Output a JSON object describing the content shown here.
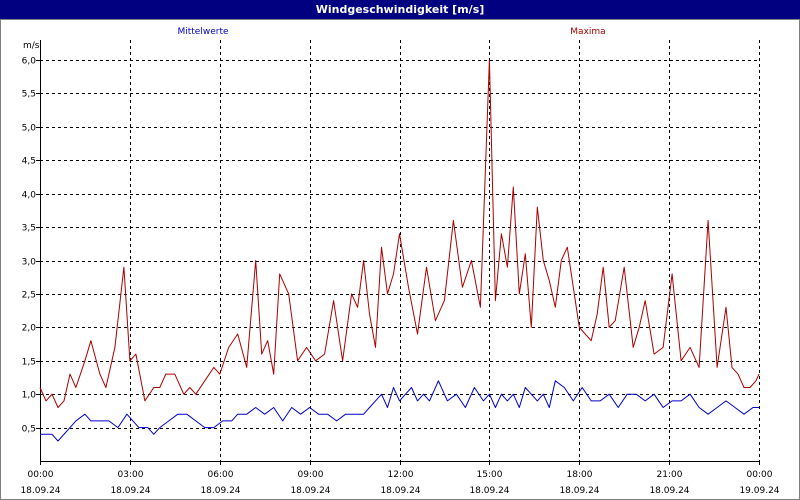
{
  "window": {
    "title": "Windgeschwindigkeit [m/s]"
  },
  "chart_data": {
    "type": "line",
    "title": "Windgeschwindigkeit [m/s]",
    "ylabel": "m/s",
    "ylim": [
      0,
      6.3
    ],
    "yticks": [
      "0,5",
      "1,0",
      "1,5",
      "2,0",
      "2,5",
      "3,0",
      "3,5",
      "4,0",
      "4,5",
      "5,0",
      "5,5",
      "6,0"
    ],
    "ytick_values": [
      0.5,
      1.0,
      1.5,
      2.0,
      2.5,
      3.0,
      3.5,
      4.0,
      4.5,
      5.0,
      5.5,
      6.0
    ],
    "xlim": [
      0,
      24
    ],
    "xticks": [
      {
        "time": "00:00",
        "date": "18.09.24"
      },
      {
        "time": "03:00",
        "date": "18.09.24"
      },
      {
        "time": "06:00",
        "date": "18.09.24"
      },
      {
        "time": "09:00",
        "date": "18.09.24"
      },
      {
        "time": "12:00",
        "date": "18.09.24"
      },
      {
        "time": "15:00",
        "date": "18.09.24"
      },
      {
        "time": "18:00",
        "date": "18.09.24"
      },
      {
        "time": "21:00",
        "date": "18.09.24"
      },
      {
        "time": "00:00",
        "date": "19.09.24"
      }
    ],
    "grid": true,
    "legend": {
      "left": "Mittelwerte",
      "right": "Maxima"
    },
    "colors": {
      "mean": "#0000cc",
      "max": "#aa0000",
      "title_bg": "#000080"
    },
    "series": [
      {
        "name": "Mittelwerte",
        "x": [
          0,
          0.4,
          0.6,
          1.0,
          1.2,
          1.5,
          1.7,
          2.0,
          2.3,
          2.6,
          2.9,
          3.1,
          3.3,
          3.6,
          3.8,
          4.0,
          4.3,
          4.6,
          4.9,
          5.2,
          5.5,
          5.8,
          6.1,
          6.4,
          6.6,
          6.9,
          7.2,
          7.5,
          7.8,
          8.1,
          8.4,
          8.7,
          9.0,
          9.3,
          9.6,
          9.9,
          10.2,
          10.5,
          10.8,
          11.0,
          11.2,
          11.4,
          11.6,
          11.8,
          12.0,
          12.2,
          12.4,
          12.6,
          12.8,
          13.0,
          13.3,
          13.6,
          13.9,
          14.2,
          14.5,
          14.8,
          15.0,
          15.2,
          15.4,
          15.6,
          15.8,
          16.0,
          16.2,
          16.4,
          16.6,
          16.8,
          17.0,
          17.2,
          17.5,
          17.8,
          18.1,
          18.4,
          18.7,
          19.0,
          19.3,
          19.6,
          19.9,
          20.2,
          20.5,
          20.8,
          21.1,
          21.4,
          21.7,
          22.0,
          22.3,
          22.6,
          22.9,
          23.2,
          23.5,
          23.8,
          24.0
        ],
        "y": [
          0.4,
          0.4,
          0.3,
          0.5,
          0.6,
          0.7,
          0.6,
          0.6,
          0.6,
          0.5,
          0.7,
          0.6,
          0.5,
          0.5,
          0.4,
          0.5,
          0.6,
          0.7,
          0.7,
          0.6,
          0.5,
          0.5,
          0.6,
          0.6,
          0.7,
          0.7,
          0.8,
          0.7,
          0.8,
          0.6,
          0.8,
          0.7,
          0.8,
          0.7,
          0.7,
          0.6,
          0.7,
          0.7,
          0.7,
          0.8,
          0.9,
          1.0,
          0.8,
          1.1,
          0.9,
          1.0,
          1.1,
          0.9,
          1.0,
          0.9,
          1.2,
          0.9,
          1.0,
          0.8,
          1.1,
          0.9,
          1.0,
          0.8,
          1.0,
          0.9,
          1.0,
          0.8,
          1.1,
          1.0,
          0.9,
          1.0,
          0.8,
          1.2,
          1.1,
          0.9,
          1.1,
          0.9,
          0.9,
          1.0,
          0.8,
          1.0,
          1.0,
          0.9,
          1.0,
          0.8,
          0.9,
          0.9,
          1.0,
          0.8,
          0.7,
          0.8,
          0.9,
          0.8,
          0.7,
          0.8,
          0.8
        ]
      },
      {
        "name": "Maxima",
        "x": [
          0,
          0.2,
          0.4,
          0.6,
          0.8,
          1.0,
          1.2,
          1.5,
          1.7,
          2.0,
          2.2,
          2.5,
          2.8,
          3.0,
          3.2,
          3.5,
          3.8,
          4.0,
          4.2,
          4.5,
          4.8,
          5.0,
          5.2,
          5.5,
          5.8,
          6.0,
          6.3,
          6.6,
          6.9,
          7.2,
          7.4,
          7.6,
          7.8,
          8.0,
          8.3,
          8.6,
          8.9,
          9.2,
          9.5,
          9.8,
          10.1,
          10.4,
          10.6,
          10.8,
          11.0,
          11.2,
          11.4,
          11.6,
          11.8,
          12.0,
          12.3,
          12.6,
          12.9,
          13.2,
          13.5,
          13.8,
          14.1,
          14.4,
          14.7,
          15.0,
          15.2,
          15.4,
          15.6,
          15.8,
          16.0,
          16.2,
          16.4,
          16.6,
          16.8,
          17.0,
          17.2,
          17.4,
          17.6,
          17.8,
          18.0,
          18.2,
          18.4,
          18.6,
          18.8,
          19.0,
          19.2,
          19.5,
          19.8,
          20.0,
          20.2,
          20.5,
          20.8,
          21.1,
          21.4,
          21.7,
          22.0,
          22.3,
          22.6,
          22.9,
          23.1,
          23.3,
          23.5,
          23.7,
          23.9,
          24.0
        ],
        "y": [
          1.1,
          0.9,
          1.0,
          0.8,
          0.9,
          1.3,
          1.1,
          1.5,
          1.8,
          1.3,
          1.1,
          1.7,
          2.9,
          1.5,
          1.6,
          0.9,
          1.1,
          1.1,
          1.3,
          1.3,
          1.0,
          1.1,
          1.0,
          1.2,
          1.4,
          1.3,
          1.7,
          1.9,
          1.4,
          3.0,
          1.6,
          1.8,
          1.3,
          2.8,
          2.5,
          1.5,
          1.7,
          1.5,
          1.6,
          2.4,
          1.5,
          2.5,
          2.3,
          3.0,
          2.2,
          1.7,
          3.2,
          2.5,
          2.8,
          3.4,
          2.6,
          1.9,
          2.9,
          2.1,
          2.4,
          3.6,
          2.6,
          3.0,
          2.3,
          6.0,
          2.4,
          3.4,
          2.9,
          4.1,
          2.5,
          3.1,
          2.0,
          3.8,
          3.0,
          2.7,
          2.3,
          3.0,
          3.2,
          2.6,
          2.0,
          1.9,
          1.8,
          2.2,
          2.9,
          2.0,
          2.1,
          2.9,
          1.7,
          2.0,
          2.4,
          1.6,
          1.7,
          2.8,
          1.5,
          1.7,
          1.4,
          3.6,
          1.4,
          2.3,
          1.4,
          1.3,
          1.1,
          1.1,
          1.2,
          1.3
        ]
      }
    ]
  }
}
